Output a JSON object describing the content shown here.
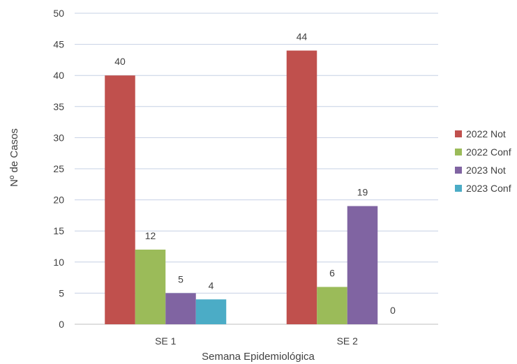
{
  "chart_data": {
    "type": "bar",
    "title": "",
    "xlabel": "Semana Epidemiológica",
    "ylabel": "Nº de Casos",
    "ylim": [
      0,
      50
    ],
    "yticks": [
      0,
      5,
      10,
      15,
      20,
      25,
      30,
      35,
      40,
      45,
      50
    ],
    "grid": true,
    "legend_position": "right",
    "categories": [
      "SE 1",
      "SE 2"
    ],
    "series": [
      {
        "name": "2022 Not",
        "color": "#C0504D",
        "values": [
          40,
          44
        ]
      },
      {
        "name": "2022 Conf",
        "color": "#9BBB59",
        "values": [
          12,
          6
        ]
      },
      {
        "name": "2023 Not",
        "color": "#8064A2",
        "values": [
          5,
          19
        ]
      },
      {
        "name": "2023 Conf",
        "color": "#4BACC6",
        "values": [
          4,
          0
        ]
      }
    ]
  }
}
